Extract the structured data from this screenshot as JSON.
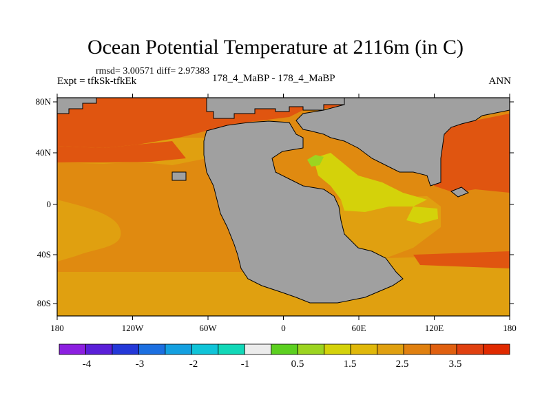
{
  "header": {
    "title": "Ocean Potential Temperature at 2116m (in C)",
    "stats": "rmsd= 3.00571 diff= 2.97383",
    "experiment": "Expt = tfkSk-tfkEk",
    "runs": "178_4_MaBP - 178_4_MaBP",
    "season": "ANN"
  },
  "axes": {
    "x_ticks": [
      "180",
      "120W",
      "60W",
      "0",
      "60E",
      "120E",
      "180"
    ],
    "y_ticks": [
      "80N",
      "40N",
      "0",
      "40S",
      "80S"
    ]
  },
  "colorbar": {
    "colors": [
      "#8c1fe0",
      "#5a1fd8",
      "#2438d8",
      "#1c6fe0",
      "#14a0e0",
      "#10c4d8",
      "#12d8b8",
      "#ececec",
      "#5cd020",
      "#9cd420",
      "#d4d20a",
      "#e0b80a",
      "#e0a010",
      "#e08010",
      "#e06010",
      "#e04010",
      "#e02a00"
    ],
    "labels": [
      "-4",
      "-3",
      "-2",
      "-1",
      "0.5",
      "1.5",
      "2.5",
      "3.5"
    ]
  },
  "colors": {
    "land": "#a0a0a0",
    "ocean_main": "#e08a10",
    "ocean_warm": "#e0a010",
    "ocean_hot": "#e05510",
    "ocean_yellow": "#d4d20a",
    "ocean_green": "#9cd420"
  }
}
